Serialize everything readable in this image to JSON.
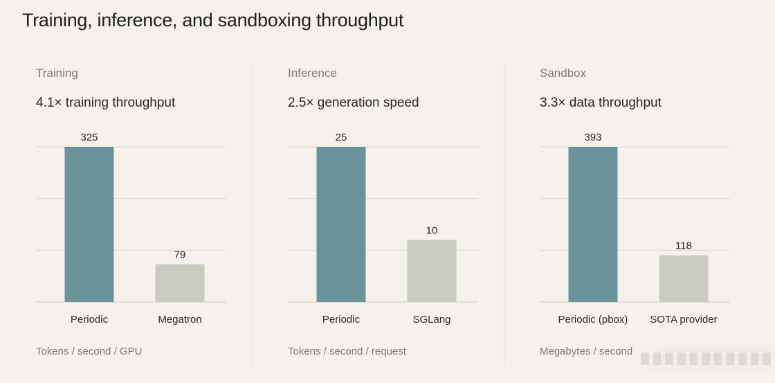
{
  "title": "Training, inference, and sandboxing throughput",
  "colors": {
    "primary_bar": "#6a939a",
    "secondary_bar": "#c9cac0",
    "grid": "#dcd8d1",
    "background": "#f5f1ec"
  },
  "panels": [
    {
      "label": "Training",
      "headline": "4.1× training throughput",
      "unit": "Tokens / second / GPU"
    },
    {
      "label": "Inference",
      "headline": "2.5× generation speed",
      "unit": "Tokens / second / request"
    },
    {
      "label": "Sandbox",
      "headline": "3.3× data throughput",
      "unit": "Megabytes / second"
    }
  ],
  "chart_data": [
    {
      "type": "bar",
      "title": "4.1× training throughput",
      "categories": [
        "Periodic",
        "Megatron"
      ],
      "values": [
        325,
        79
      ],
      "ylabel": "Tokens / second / GPU",
      "ylim": [
        0,
        325
      ],
      "grid": true
    },
    {
      "type": "bar",
      "title": "2.5× generation speed",
      "categories": [
        "Periodic",
        "SGLang"
      ],
      "values": [
        25,
        10
      ],
      "ylabel": "Tokens / second / request",
      "ylim": [
        0,
        25
      ],
      "grid": true
    },
    {
      "type": "bar",
      "title": "3.3× data throughput",
      "categories": [
        "Periodic (pbox)",
        "SOTA provider"
      ],
      "values": [
        393,
        118
      ],
      "ylabel": "Megabytes / second",
      "ylim": [
        0,
        393
      ],
      "grid": true
    }
  ]
}
